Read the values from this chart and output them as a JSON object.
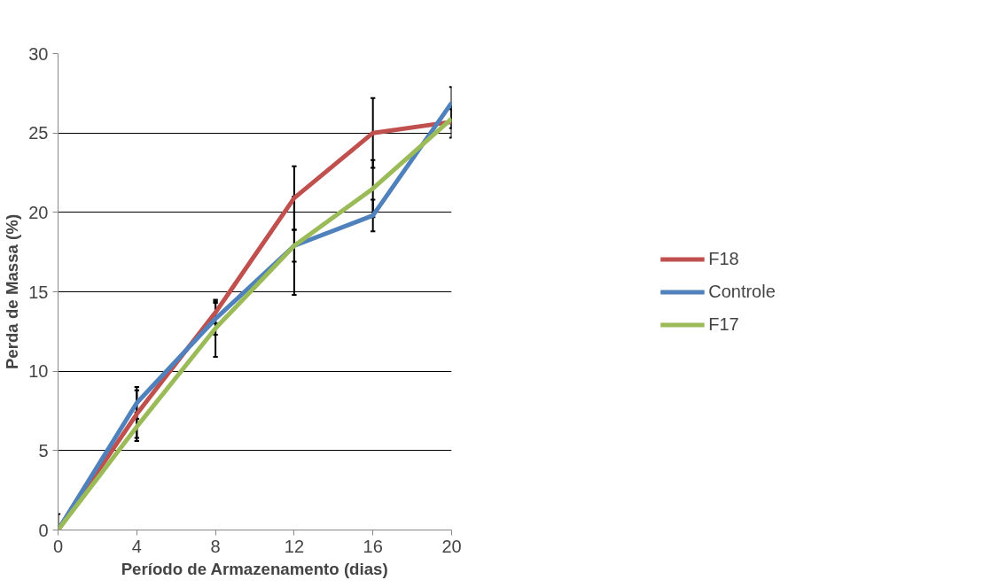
{
  "chart_data": {
    "type": "line",
    "xlabel": "Período de Armazenamento (dias)",
    "ylabel": "Perda de Massa (%)",
    "x": [
      0,
      4,
      8,
      12,
      16,
      20
    ],
    "xlim": [
      0,
      20
    ],
    "xticks": [
      0,
      4,
      8,
      12,
      16,
      20
    ],
    "ylim": [
      0,
      30
    ],
    "yticks": [
      0,
      5,
      10,
      15,
      20,
      25,
      30
    ],
    "grid": "y",
    "legend": "right",
    "marker": "none",
    "line_style": "solid",
    "series": [
      {
        "name": "F18",
        "color": "#c0504d",
        "values": [
          0,
          7.3,
          13.7,
          20.9,
          25.0,
          25.7
        ],
        "errors": [
          1.0,
          1.5,
          0.7,
          2.0,
          2.2,
          1.0
        ]
      },
      {
        "name": "Controle",
        "color": "#4f81bd",
        "values": [
          0,
          8.0,
          13.3,
          17.9,
          19.8,
          26.9
        ],
        "errors": [
          null,
          1.0,
          1.0,
          3.1,
          1.0,
          1.0
        ]
      },
      {
        "name": "F17",
        "color": "#9bbb59",
        "values": [
          0,
          6.5,
          12.7,
          17.9,
          21.5,
          25.9
        ],
        "errors": [
          null,
          0.9,
          1.8,
          1.0,
          1.8,
          0.6
        ]
      }
    ]
  }
}
